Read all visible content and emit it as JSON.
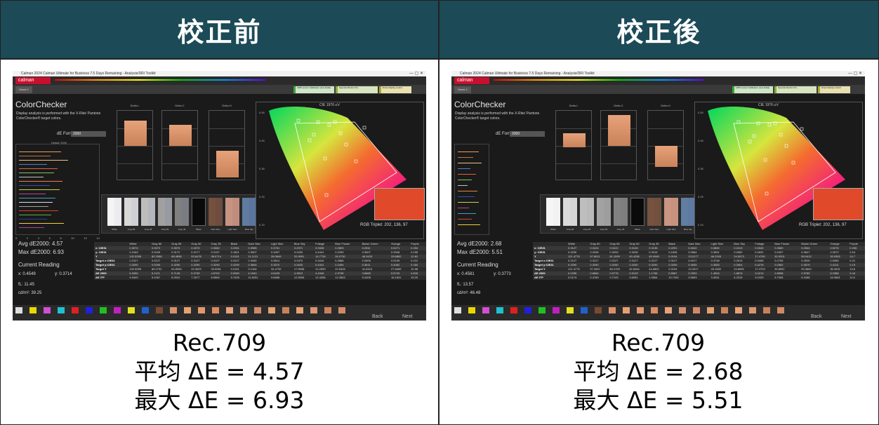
{
  "headers": {
    "before": "校正前",
    "after": "校正後"
  },
  "app": {
    "titlebar": "Calman 2024 Calman Ultimate for Business 7.5 Days Remaining - Analysis/DRI Toolkit",
    "logo": "calman",
    "tab": "Home 1",
    "devices": [
      "LMW sensor Calibration (Live Delta)",
      "Spectral Monitor Pro",
      "Direct display control"
    ],
    "section_title": "ColorChecker",
    "description": "Display analysis is performed with the X-Rite/ Pantone ColorChecker® target colors.",
    "de_formula_label": "dE Formula:",
    "de_formula_value": "2000",
    "hist_title": "DeltaE 2000",
    "hist_ticks": [
      "0",
      "2",
      "4",
      "6",
      "8",
      "10",
      "12",
      "14"
    ],
    "delta_titles": [
      "Delta L",
      "Delta C",
      "Delta H"
    ],
    "cie_title": "CIE 1976 u'v'",
    "rgb_triplet": "RGB Triplet: 202, 136, 97",
    "current_reading_label": "Current Reading",
    "back_label": "Back",
    "next_label": "Next",
    "patch_labels": [
      "White",
      "Gray 80",
      "Gray 65",
      "Gray 50",
      "Gray 35",
      "Black",
      "Dark Skin",
      "Light Skin",
      "Blue Sky"
    ],
    "table_columns": [
      "",
      "White",
      "Gray 80",
      "Gray 65",
      "Gray 50",
      "Gray 35",
      "Black",
      "Dark Skin",
      "Light Skin",
      "Blue Sky",
      "Foliage",
      "Blue Flower",
      "Bluish Green",
      "Orange",
      "Purple"
    ],
    "row_labels": [
      "x: CIE31",
      "y: CIE31",
      "Y",
      "Target x:CIE31",
      "Target y:CIE31",
      "Target Y",
      "ΔE 2000",
      "ΔE ITP"
    ]
  },
  "before": {
    "avg_de": "Avg dE2000: 4.57",
    "max_de": "Max dE2000: 6.93",
    "x": "x: 0.4549",
    "y": "y: 0.3714",
    "fl": "fL: 11.45",
    "cdm2": "cd/m²: 39.25",
    "rows": [
      [
        "0.3074",
        "0.3072",
        "0.3070",
        "0.3075",
        "0.3082",
        "0.2301",
        "0.3985",
        "0.3751",
        "0.2371",
        "0.3328",
        "0.2603",
        "0.2511",
        "0.5271",
        "0.204"
      ],
      [
        "0.3163",
        "0.3169",
        "0.3172",
        "0.3177",
        "0.3197",
        "0.1821",
        "0.3507",
        "0.3457",
        "0.2433",
        "0.4441",
        "0.2299",
        "0.3507",
        "0.3948",
        "0.155"
      ],
      [
        "102.5395",
        "82.2058",
        "68.4898",
        "53.6478",
        "38.0714",
        "0.0151",
        "11.1131",
        "39.0849",
        "20.9091",
        "14.7726",
        "26.0730",
        "46.3433",
        "33.6852",
        "12.81"
      ],
      [
        "0.3127",
        "0.3127",
        "0.3127",
        "0.3127",
        "0.3127",
        "0.3127",
        "0.4080",
        "0.3814",
        "0.2470",
        "0.3416",
        "0.2666",
        "0.2605",
        "0.5195",
        "0.212"
      ],
      [
        "0.3290",
        "0.3290",
        "0.3290",
        "0.3290",
        "0.3290",
        "0.3290",
        "0.3664",
        "0.3570",
        "0.2625",
        "0.4331",
        "0.2494",
        "0.3611",
        "0.4062",
        "0.184"
      ],
      [
        "102.5395",
        "80.0732",
        "64.8906",
        "49.3629",
        "33.9081",
        "0.0151",
        "9.2184",
        "34.4739",
        "17.9938",
        "12.2599",
        "22.5426",
        "41.6424",
        "27.8489",
        "10.98"
      ],
      [
        "6.0260",
        "6.1121",
        "5.7145",
        "5.3739",
        "4.5702",
        "0.5260",
        "4.1540",
        "4.6425",
        "4.3519",
        "4.4346",
        "4.9738",
        "3.6689",
        "5.5743",
        "4.618"
      ],
      [
        "4.9449",
        "5.1067",
        "6.0510",
        "7.2677",
        "8.5565",
        "9.7628",
        "11.8251",
        "9.6668",
        "12.5006",
        "12.4266",
        "12.2863",
        "9.2408",
        "16.1631",
        "15.20"
      ]
    ]
  },
  "after": {
    "avg_de": "Avg dE2000: 2.68",
    "max_de": "Max dE2000: 5.51",
    "x": "x: 0.4581",
    "y": "y: 0.3773",
    "fl": "fL: 13.57",
    "cdm2": "cd/m²: 46.48",
    "rows": [
      [
        "0.3127",
        "0.3124",
        "0.3122",
        "0.3126",
        "0.3135",
        "0.2291",
        "0.4042",
        "0.3800",
        "0.2413",
        "0.3349",
        "0.2660",
        "0.2544",
        "0.5278",
        "0.206"
      ],
      [
        "0.3290",
        "0.3296",
        "0.3293",
        "0.3296",
        "0.3315",
        "0.1835",
        "0.3564",
        "0.3551",
        "0.2552",
        "0.4531",
        "0.2407",
        "0.3647",
        "0.3972",
        "0.16"
      ],
      [
        "121.4776",
        "97.8011",
        "81.1599",
        "63.4256",
        "45.0948",
        "0.0194",
        "13.0177",
        "46.2245",
        "24.5573",
        "17.4750",
        "30.5201",
        "55.0412",
        "39.9352",
        "14.7"
      ],
      [
        "0.3127",
        "0.3127",
        "0.3127",
        "0.3127",
        "0.3127",
        "0.3127",
        "0.4017",
        "0.3748",
        "0.2513",
        "0.3408",
        "0.2706",
        "0.2626",
        "0.5085",
        "0.21"
      ],
      [
        "0.3290",
        "0.3290",
        "0.3290",
        "0.3290",
        "0.3290",
        "0.3290",
        "0.3635",
        "0.3553",
        "0.2604",
        "0.4278",
        "0.2562",
        "0.3579",
        "0.4113",
        "0.19"
      ],
      [
        "121.4776",
        "97.2657",
        "80.4769",
        "62.8464",
        "44.6802",
        "0.0194",
        "13.3317",
        "45.1830",
        "24.8955",
        "17.4703",
        "30.8087",
        "53.3660",
        "36.3531",
        "13.6"
      ],
      [
        "0.0255",
        "0.6664",
        "0.5778",
        "0.5129",
        "1.1766",
        "0.5587",
        "2.2393",
        "1.4504",
        "1.8676",
        "3.4213",
        "2.8058",
        "2.5785",
        "5.2388",
        "3.44"
      ],
      [
        "0.0174",
        "0.4789",
        "0.7193",
        "0.6951",
        "1.0564",
        "10.7282",
        "3.5893",
        "3.4531",
        "6.2315",
        "9.2425",
        "5.7306",
        "6.3458",
        "16.9681",
        "11.6"
      ]
    ]
  },
  "captions": {
    "before": [
      "Rec.709",
      "平均 ΔE = 4.57",
      "最大 ΔE = 6.93"
    ],
    "after": [
      "Rec.709",
      "平均 ΔE = 2.68",
      "最大 ΔE = 5.51"
    ]
  }
}
